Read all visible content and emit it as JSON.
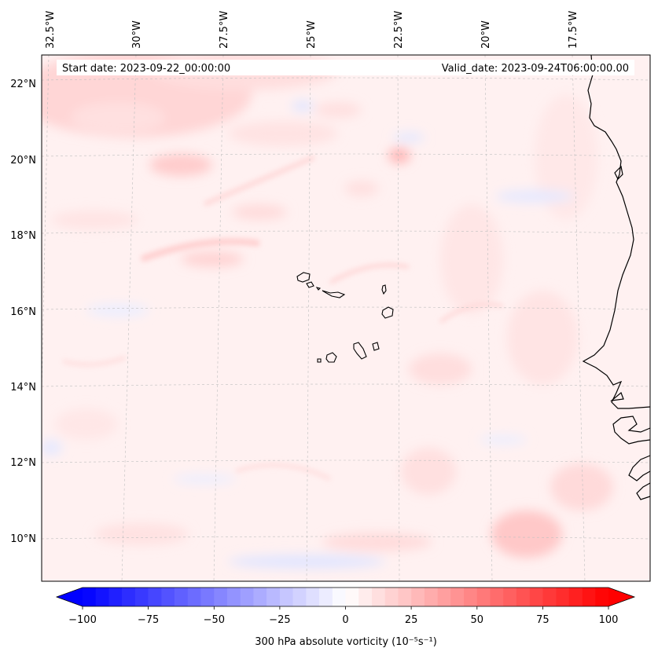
{
  "header": {
    "start_date": "Start date: 2023-09-22_00:00:00",
    "valid_date": "Valid_date: 2023-09-24T06:00:00.00"
  },
  "map": {
    "lon_labels": [
      "32.5°W",
      "30°W",
      "27.5°W",
      "25°W",
      "22.5°W",
      "20°W",
      "17.5°W"
    ],
    "lat_labels": [
      "22°N",
      "20°N",
      "18°N",
      "16°N",
      "14°N",
      "12°N",
      "10°N"
    ],
    "features": [
      "cape-verde-islands",
      "west-africa-coastline"
    ],
    "field": "300 hPa absolute vorticity"
  },
  "colorbar": {
    "label": "300 hPa absolute vorticity (10⁻⁵s⁻¹)",
    "ticks": [
      "−100",
      "−75",
      "−50",
      "−25",
      "0",
      "25",
      "50",
      "75",
      "100"
    ],
    "range": [
      -100,
      100
    ],
    "colormap": "bwr",
    "extend": "both",
    "colors": {
      "min": "#0000ff",
      "mid": "#ffffff",
      "max": "#ff0000"
    }
  }
}
